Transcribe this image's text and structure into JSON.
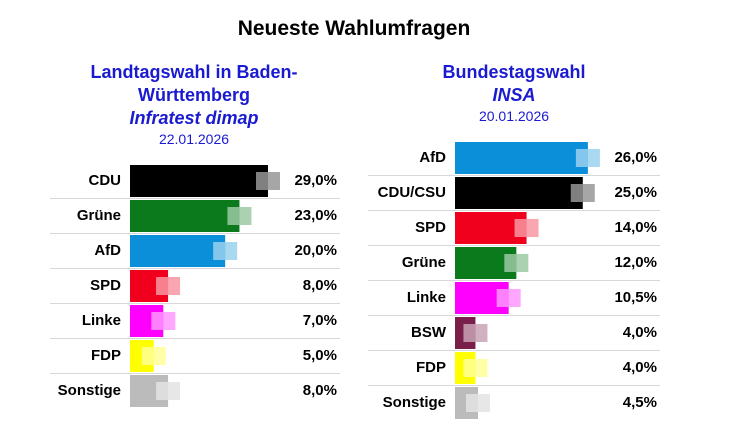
{
  "header": {
    "title": "Neueste Wahlumfragen"
  },
  "chart_data": [
    {
      "type": "bar",
      "title": "Landtagswahl in Baden-Württemberg",
      "subtitle": "Infratest dimap",
      "date": "22.01.2026",
      "categories": [
        "CDU",
        "Grüne",
        "AfD",
        "SPD",
        "Linke",
        "FDP",
        "Sonstige"
      ],
      "values": [
        29,
        23,
        20,
        8,
        7,
        5,
        8
      ],
      "value_labels": [
        "29,0%",
        "23,0%",
        "20,0%",
        "8,0%",
        "7,0%",
        "5,0%",
        "8,0%"
      ],
      "colors": [
        "#000000",
        "#0b7a1c",
        "#0a8fd8",
        "#f0001c",
        "#ff00ff",
        "#ffff00",
        "#bbbbbb"
      ],
      "xlim": [
        0,
        29
      ]
    },
    {
      "type": "bar",
      "title": "Bundestagswahl",
      "subtitle": "INSA",
      "date": "20.01.2026",
      "categories": [
        "AfD",
        "CDU/CSU",
        "SPD",
        "Grüne",
        "Linke",
        "BSW",
        "FDP",
        "Sonstige"
      ],
      "values": [
        26,
        25,
        14,
        12,
        10.5,
        4,
        4,
        4.5
      ],
      "value_labels": [
        "26,0%",
        "25,0%",
        "14,0%",
        "12,0%",
        "10,5%",
        "4,0%",
        "4,0%",
        "4,5%"
      ],
      "colors": [
        "#0a8fd8",
        "#000000",
        "#f0001c",
        "#0b7a1c",
        "#ff00ff",
        "#7a1f4a",
        "#ffff00",
        "#bbbbbb"
      ],
      "xlim": [
        0,
        27
      ]
    }
  ]
}
